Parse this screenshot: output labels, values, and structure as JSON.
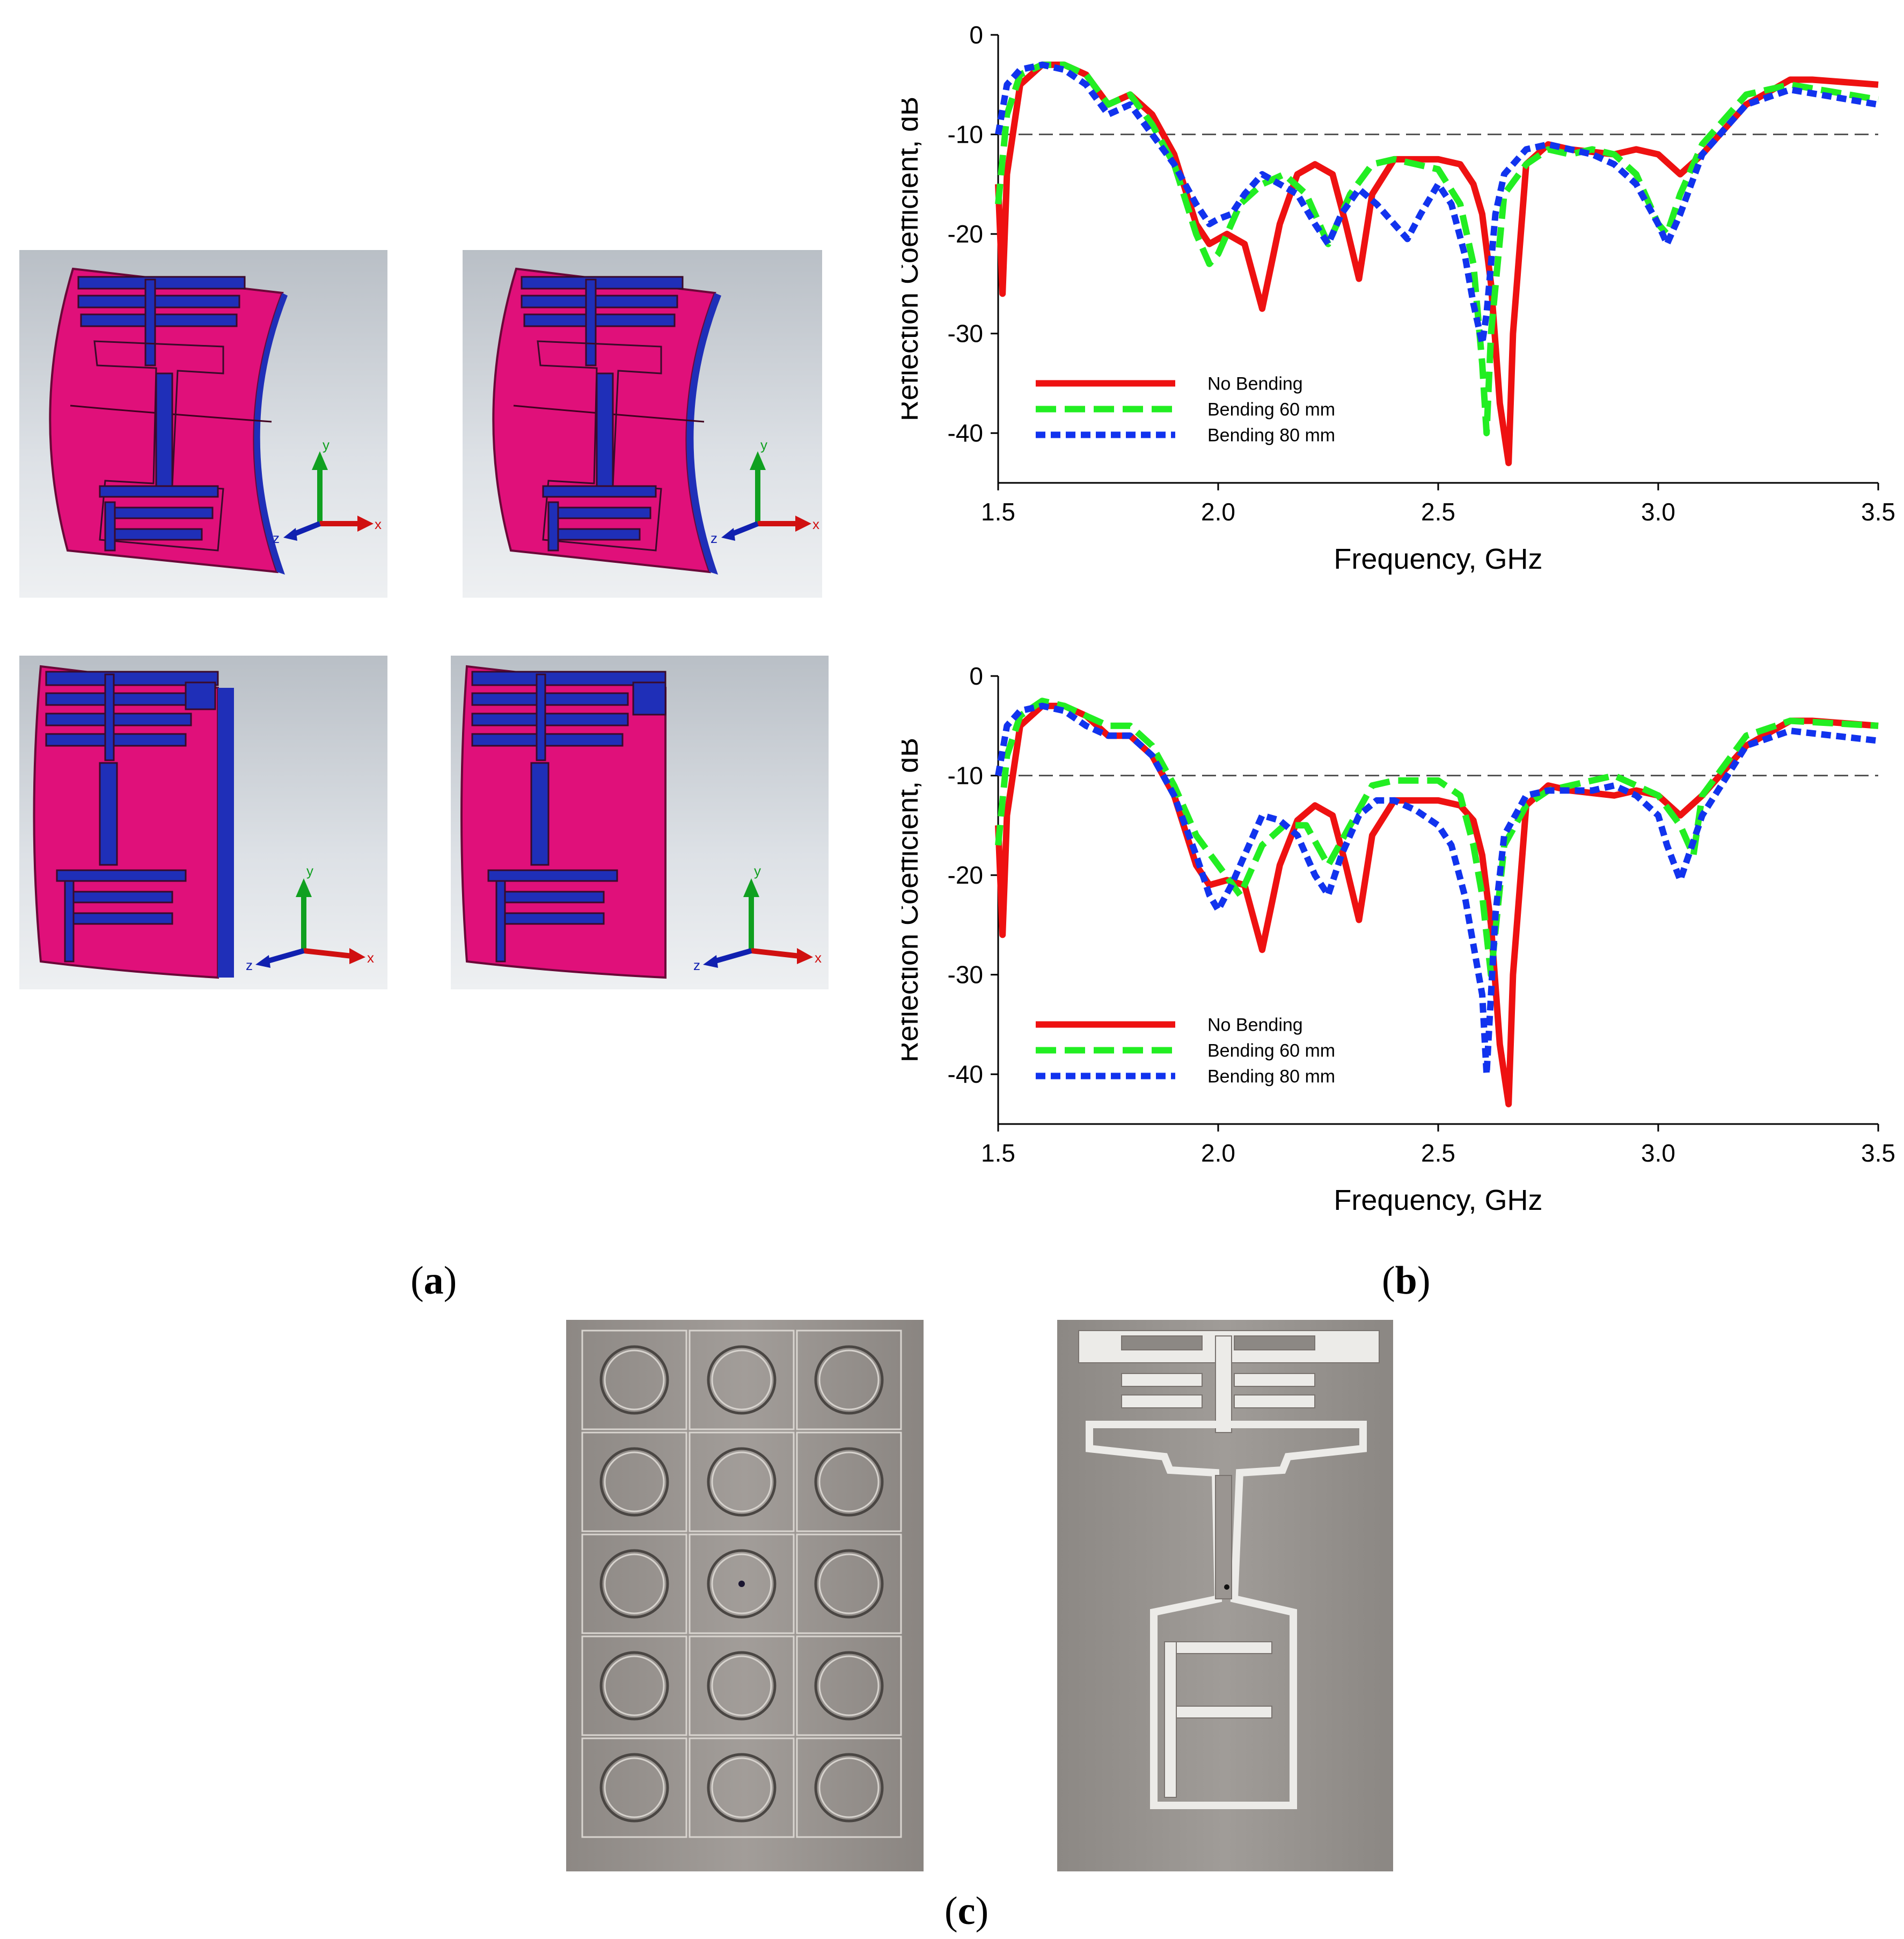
{
  "subfigure_labels": {
    "a": "a",
    "b": "b",
    "c": "c"
  },
  "axis_glyphs": {
    "x": "x",
    "y": "y",
    "z": "z"
  },
  "colors": {
    "substrate": "#e0107a",
    "conductor": "#1f2fb8",
    "no_bending": "#ee1111",
    "bending_60": "#22ee22",
    "bending_80": "#1133ee",
    "photo_bg": "#8f8a86"
  },
  "chart_data": [
    {
      "type": "line",
      "xlabel": "Frequency, GHz",
      "ylabel": "Reflection Coefficient, dB",
      "xlim": [
        1.5,
        3.5
      ],
      "ylim": [
        -45,
        0
      ],
      "xticks": [
        "1.5",
        "2.0",
        "2.5",
        "3.0",
        "3.5"
      ],
      "yticks": [
        "0",
        "-10",
        "-20",
        "-30",
        "-40"
      ],
      "reference_line": -10,
      "legend_position": "bottom-left",
      "series": [
        {
          "name": "No Bending",
          "style": "solid",
          "x": [
            1.5,
            1.51,
            1.52,
            1.55,
            1.6,
            1.65,
            1.7,
            1.75,
            1.8,
            1.85,
            1.9,
            1.95,
            1.98,
            2.02,
            2.06,
            2.1,
            2.14,
            2.18,
            2.22,
            2.26,
            2.29,
            2.32,
            2.35,
            2.4,
            2.45,
            2.5,
            2.55,
            2.58,
            2.6,
            2.62,
            2.64,
            2.66,
            2.67,
            2.7,
            2.75,
            2.8,
            2.9,
            2.95,
            3.0,
            3.05,
            3.1,
            3.2,
            3.3,
            3.35,
            3.5
          ],
          "y": [
            -15,
            -26,
            -14,
            -5,
            -3,
            -3,
            -4,
            -7,
            -6,
            -8,
            -12,
            -19,
            -21,
            -20,
            -21,
            -27.5,
            -19,
            -14,
            -13,
            -14,
            -19,
            -24.5,
            -16,
            -12.5,
            -12.5,
            -12.5,
            -13,
            -15,
            -18,
            -25,
            -37,
            -43,
            -30,
            -13,
            -11,
            -11.5,
            -12,
            -11.5,
            -12,
            -14,
            -12,
            -7,
            -4.5,
            -4.5,
            -5
          ]
        },
        {
          "name": "Bending 60 mm",
          "style": "long-dash",
          "x": [
            1.5,
            1.52,
            1.55,
            1.6,
            1.65,
            1.7,
            1.75,
            1.8,
            1.85,
            1.9,
            1.95,
            1.98,
            2.0,
            2.05,
            2.1,
            2.15,
            2.2,
            2.25,
            2.3,
            2.35,
            2.4,
            2.45,
            2.5,
            2.55,
            2.58,
            2.6,
            2.61,
            2.62,
            2.65,
            2.7,
            2.75,
            2.8,
            2.85,
            2.9,
            2.95,
            3.0,
            3.02,
            3.05,
            3.1,
            3.2,
            3.3,
            3.5
          ],
          "y": [
            -17,
            -8,
            -4,
            -3,
            -3,
            -4,
            -7,
            -6,
            -9,
            -13,
            -20,
            -23,
            -22,
            -17,
            -15,
            -14,
            -16,
            -21,
            -16,
            -13,
            -12.5,
            -13,
            -13.5,
            -17,
            -23,
            -33,
            -40,
            -30,
            -16,
            -13,
            -11.5,
            -12,
            -11.5,
            -12,
            -14,
            -19,
            -20,
            -16,
            -11,
            -6,
            -5,
            -6.5
          ]
        },
        {
          "name": "Bending 80 mm",
          "style": "short-dash",
          "x": [
            1.5,
            1.52,
            1.55,
            1.6,
            1.65,
            1.7,
            1.75,
            1.8,
            1.85,
            1.9,
            1.95,
            1.98,
            2.0,
            2.03,
            2.06,
            2.1,
            2.14,
            2.18,
            2.22,
            2.25,
            2.28,
            2.32,
            2.36,
            2.4,
            2.43,
            2.46,
            2.5,
            2.53,
            2.56,
            2.58,
            2.6,
            2.61,
            2.63,
            2.65,
            2.7,
            2.75,
            2.8,
            2.85,
            2.9,
            2.95,
            3.0,
            3.02,
            3.05,
            3.1,
            3.2,
            3.3,
            3.5
          ],
          "y": [
            -10,
            -5,
            -3.5,
            -3,
            -3.5,
            -5,
            -8,
            -7,
            -10,
            -13,
            -17,
            -19,
            -18.5,
            -18,
            -16,
            -14,
            -15,
            -16,
            -19,
            -21,
            -18,
            -15.5,
            -17,
            -19,
            -20.5,
            -18,
            -15,
            -17,
            -22,
            -27,
            -31,
            -28,
            -18,
            -14,
            -11.5,
            -11,
            -11.5,
            -12,
            -13,
            -15,
            -19,
            -21,
            -18,
            -12,
            -7,
            -5.5,
            -7
          ]
        }
      ]
    },
    {
      "type": "line",
      "xlabel": "Frequency, GHz",
      "ylabel": "Reflection Coefficient, dB",
      "xlim": [
        1.5,
        3.5
      ],
      "ylim": [
        -45,
        0
      ],
      "xticks": [
        "1.5",
        "2.0",
        "2.5",
        "3.0",
        "3.5"
      ],
      "yticks": [
        "0",
        "-10",
        "-20",
        "-30",
        "-40"
      ],
      "reference_line": -10,
      "legend_position": "bottom-left",
      "series": [
        {
          "name": "No Bending",
          "style": "solid",
          "x": [
            1.5,
            1.51,
            1.52,
            1.55,
            1.6,
            1.65,
            1.7,
            1.75,
            1.8,
            1.85,
            1.9,
            1.95,
            1.98,
            2.02,
            2.06,
            2.1,
            2.14,
            2.18,
            2.22,
            2.26,
            2.29,
            2.32,
            2.35,
            2.4,
            2.45,
            2.5,
            2.55,
            2.58,
            2.6,
            2.62,
            2.64,
            2.66,
            2.67,
            2.7,
            2.75,
            2.8,
            2.9,
            2.95,
            3.0,
            3.05,
            3.1,
            3.2,
            3.3,
            3.35,
            3.5
          ],
          "y": [
            -15,
            -26,
            -14,
            -5,
            -3,
            -3,
            -4,
            -6,
            -6,
            -8,
            -12,
            -19,
            -21,
            -20.5,
            -21,
            -27.5,
            -19,
            -14.5,
            -13,
            -14,
            -19,
            -24.5,
            -16,
            -12.5,
            -12.5,
            -12.5,
            -13,
            -14.5,
            -18,
            -25,
            -37,
            -43,
            -30,
            -13,
            -11,
            -11.5,
            -12,
            -11.5,
            -12,
            -14,
            -12,
            -7,
            -4.5,
            -4.5,
            -5
          ]
        },
        {
          "name": "Bending 60 mm",
          "style": "long-dash",
          "x": [
            1.5,
            1.52,
            1.55,
            1.6,
            1.65,
            1.7,
            1.75,
            1.8,
            1.85,
            1.9,
            1.95,
            2.0,
            2.05,
            2.1,
            2.15,
            2.2,
            2.25,
            2.3,
            2.35,
            2.4,
            2.45,
            2.5,
            2.55,
            2.58,
            2.6,
            2.62,
            2.65,
            2.7,
            2.75,
            2.8,
            2.85,
            2.9,
            2.95,
            3.0,
            3.05,
            3.08,
            3.1,
            3.2,
            3.3,
            3.5
          ],
          "y": [
            -17,
            -8,
            -4,
            -2.5,
            -3,
            -4,
            -5,
            -5,
            -7,
            -11,
            -16,
            -19,
            -22,
            -17,
            -15,
            -15,
            -19,
            -15,
            -11,
            -10.5,
            -10.5,
            -10.5,
            -12,
            -17,
            -22,
            -30,
            -17,
            -13,
            -11.5,
            -11,
            -10.5,
            -10,
            -11,
            -12,
            -15,
            -18,
            -12,
            -6,
            -4.5,
            -5
          ]
        },
        {
          "name": "Bending 80 mm",
          "style": "short-dash",
          "x": [
            1.5,
            1.52,
            1.55,
            1.6,
            1.65,
            1.7,
            1.75,
            1.8,
            1.85,
            1.9,
            1.95,
            1.98,
            2.0,
            2.03,
            2.06,
            2.1,
            2.14,
            2.18,
            2.22,
            2.25,
            2.28,
            2.32,
            2.36,
            2.4,
            2.45,
            2.5,
            2.53,
            2.56,
            2.58,
            2.6,
            2.61,
            2.63,
            2.65,
            2.7,
            2.75,
            2.8,
            2.85,
            2.9,
            2.95,
            3.0,
            3.02,
            3.05,
            3.1,
            3.2,
            3.3,
            3.5
          ],
          "y": [
            -10,
            -5,
            -3.5,
            -3,
            -3.5,
            -5,
            -6,
            -6,
            -8,
            -12,
            -18,
            -22,
            -23.5,
            -21,
            -18,
            -14,
            -14.5,
            -16,
            -20,
            -22,
            -18,
            -14,
            -12.5,
            -12.5,
            -13.5,
            -15,
            -17,
            -22,
            -27,
            -32,
            -40,
            -24,
            -16,
            -12,
            -11.5,
            -11.5,
            -11.5,
            -11,
            -12,
            -14,
            -17,
            -20.5,
            -14,
            -7,
            -5.5,
            -6.5
          ]
        }
      ]
    }
  ]
}
